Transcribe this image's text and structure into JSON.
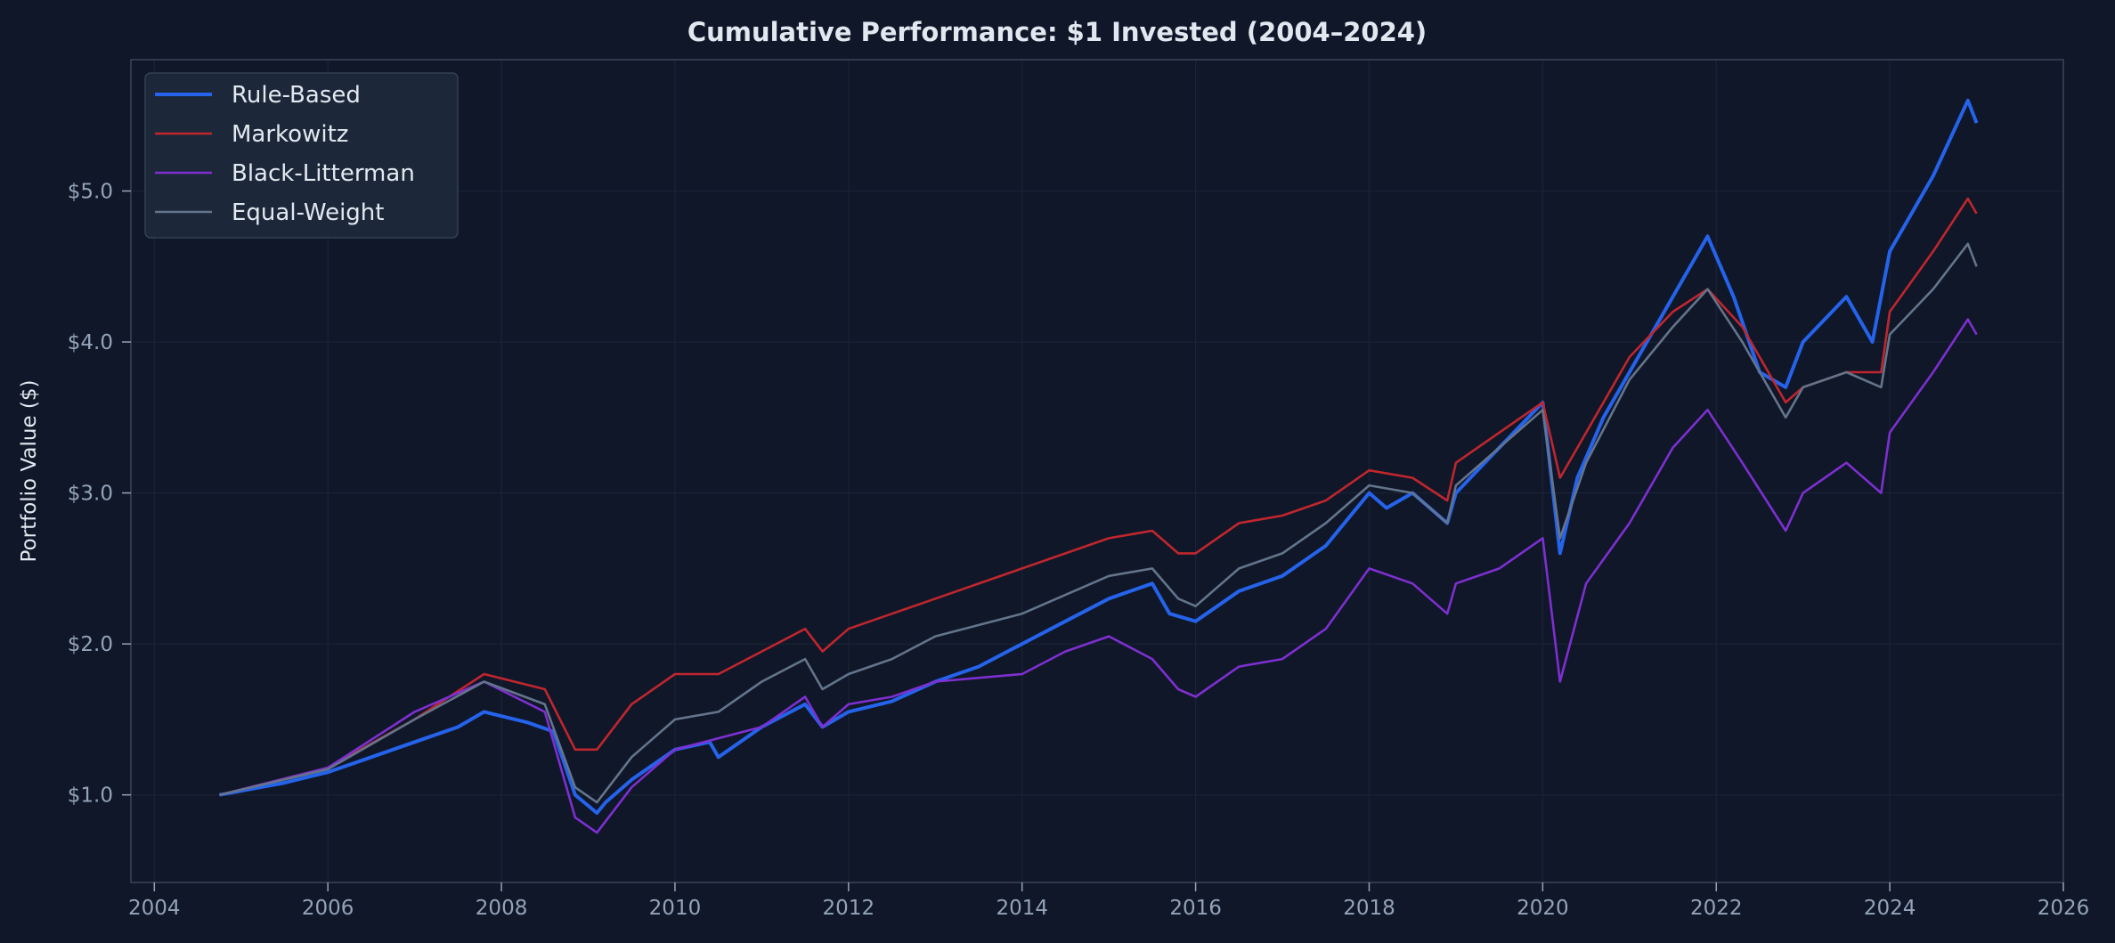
{
  "chart_data": {
    "type": "line",
    "title": "Cumulative Performance: $1 Invested (2004–2024)",
    "xlabel": "",
    "ylabel": "Portfolio Value ($)",
    "xlim": [
      2003.73,
      2026.0
    ],
    "ylim": [
      0.42,
      5.87
    ],
    "xticks": [
      2004,
      2006,
      2008,
      2010,
      2012,
      2014,
      2016,
      2018,
      2020,
      2022,
      2024,
      2026
    ],
    "yticks": [
      1.0,
      2.0,
      3.0,
      4.0,
      5.0
    ],
    "ytick_labels": [
      "$1.0",
      "$2.0",
      "$3.0",
      "$4.0",
      "$5.0"
    ],
    "grid": true,
    "legend_position": "top-left",
    "colors": {
      "background": "#0f1729",
      "grid": "#1a2436",
      "spine": "#3b4759"
    },
    "series": [
      {
        "name": "Rule-Based",
        "color": "#2563eb",
        "points": [
          [
            2004.75,
            1.0
          ],
          [
            2005.5,
            1.08
          ],
          [
            2006.0,
            1.15
          ],
          [
            2006.5,
            1.25
          ],
          [
            2007.0,
            1.35
          ],
          [
            2007.5,
            1.45
          ],
          [
            2007.8,
            1.55
          ],
          [
            2008.3,
            1.48
          ],
          [
            2008.6,
            1.42
          ],
          [
            2008.85,
            1.0
          ],
          [
            2009.1,
            0.88
          ],
          [
            2009.2,
            0.95
          ],
          [
            2009.5,
            1.1
          ],
          [
            2010.0,
            1.3
          ],
          [
            2010.4,
            1.35
          ],
          [
            2010.5,
            1.25
          ],
          [
            2011.0,
            1.45
          ],
          [
            2011.5,
            1.6
          ],
          [
            2011.7,
            1.45
          ],
          [
            2012.0,
            1.55
          ],
          [
            2012.5,
            1.62
          ],
          [
            2013.0,
            1.75
          ],
          [
            2013.5,
            1.85
          ],
          [
            2014.0,
            2.0
          ],
          [
            2014.5,
            2.15
          ],
          [
            2015.0,
            2.3
          ],
          [
            2015.5,
            2.4
          ],
          [
            2015.7,
            2.2
          ],
          [
            2016.0,
            2.15
          ],
          [
            2016.5,
            2.35
          ],
          [
            2017.0,
            2.45
          ],
          [
            2017.5,
            2.65
          ],
          [
            2018.0,
            3.0
          ],
          [
            2018.2,
            2.9
          ],
          [
            2018.5,
            3.0
          ],
          [
            2018.9,
            2.8
          ],
          [
            2019.0,
            3.0
          ],
          [
            2019.5,
            3.3
          ],
          [
            2020.0,
            3.6
          ],
          [
            2020.2,
            2.6
          ],
          [
            2020.4,
            3.1
          ],
          [
            2020.7,
            3.5
          ],
          [
            2021.0,
            3.8
          ],
          [
            2021.5,
            4.3
          ],
          [
            2021.9,
            4.7
          ],
          [
            2022.2,
            4.3
          ],
          [
            2022.5,
            3.8
          ],
          [
            2022.8,
            3.7
          ],
          [
            2023.0,
            4.0
          ],
          [
            2023.5,
            4.3
          ],
          [
            2023.8,
            4.0
          ],
          [
            2024.0,
            4.6
          ],
          [
            2024.5,
            5.1
          ],
          [
            2024.9,
            5.6
          ],
          [
            2025.0,
            5.45
          ]
        ]
      },
      {
        "name": "Markowitz",
        "color": "#c0262d",
        "points": [
          [
            2004.75,
            1.0
          ],
          [
            2006.0,
            1.18
          ],
          [
            2007.0,
            1.5
          ],
          [
            2007.8,
            1.8
          ],
          [
            2008.5,
            1.7
          ],
          [
            2008.85,
            1.3
          ],
          [
            2009.1,
            1.3
          ],
          [
            2009.5,
            1.6
          ],
          [
            2010.0,
            1.8
          ],
          [
            2010.5,
            1.8
          ],
          [
            2011.0,
            1.95
          ],
          [
            2011.5,
            2.1
          ],
          [
            2011.7,
            1.95
          ],
          [
            2012.0,
            2.1
          ],
          [
            2012.5,
            2.2
          ],
          [
            2013.0,
            2.3
          ],
          [
            2014.0,
            2.5
          ],
          [
            2015.0,
            2.7
          ],
          [
            2015.5,
            2.75
          ],
          [
            2015.8,
            2.6
          ],
          [
            2016.0,
            2.6
          ],
          [
            2016.5,
            2.8
          ],
          [
            2017.0,
            2.85
          ],
          [
            2017.5,
            2.95
          ],
          [
            2018.0,
            3.15
          ],
          [
            2018.5,
            3.1
          ],
          [
            2018.9,
            2.95
          ],
          [
            2019.0,
            3.2
          ],
          [
            2019.5,
            3.4
          ],
          [
            2020.0,
            3.6
          ],
          [
            2020.2,
            3.1
          ],
          [
            2020.5,
            3.4
          ],
          [
            2021.0,
            3.9
          ],
          [
            2021.5,
            4.2
          ],
          [
            2021.9,
            4.35
          ],
          [
            2022.3,
            4.1
          ],
          [
            2022.8,
            3.6
          ],
          [
            2023.0,
            3.7
          ],
          [
            2023.5,
            3.8
          ],
          [
            2023.9,
            3.8
          ],
          [
            2024.0,
            4.2
          ],
          [
            2024.5,
            4.6
          ],
          [
            2024.9,
            4.95
          ],
          [
            2025.0,
            4.85
          ]
        ]
      },
      {
        "name": "Black-Litterman",
        "color": "#7e2fd0",
        "points": [
          [
            2004.75,
            1.0
          ],
          [
            2006.0,
            1.18
          ],
          [
            2007.0,
            1.55
          ],
          [
            2007.8,
            1.75
          ],
          [
            2008.5,
            1.55
          ],
          [
            2008.85,
            0.85
          ],
          [
            2009.1,
            0.75
          ],
          [
            2009.5,
            1.05
          ],
          [
            2010.0,
            1.3
          ],
          [
            2011.0,
            1.45
          ],
          [
            2011.5,
            1.65
          ],
          [
            2011.7,
            1.45
          ],
          [
            2012.0,
            1.6
          ],
          [
            2012.5,
            1.65
          ],
          [
            2013.0,
            1.75
          ],
          [
            2014.0,
            1.8
          ],
          [
            2014.5,
            1.95
          ],
          [
            2015.0,
            2.05
          ],
          [
            2015.5,
            1.9
          ],
          [
            2015.8,
            1.7
          ],
          [
            2016.0,
            1.65
          ],
          [
            2016.5,
            1.85
          ],
          [
            2017.0,
            1.9
          ],
          [
            2017.5,
            2.1
          ],
          [
            2018.0,
            2.5
          ],
          [
            2018.5,
            2.4
          ],
          [
            2018.9,
            2.2
          ],
          [
            2019.0,
            2.4
          ],
          [
            2019.5,
            2.5
          ],
          [
            2020.0,
            2.7
          ],
          [
            2020.2,
            1.75
          ],
          [
            2020.5,
            2.4
          ],
          [
            2021.0,
            2.8
          ],
          [
            2021.5,
            3.3
          ],
          [
            2021.9,
            3.55
          ],
          [
            2022.3,
            3.2
          ],
          [
            2022.8,
            2.75
          ],
          [
            2023.0,
            3.0
          ],
          [
            2023.5,
            3.2
          ],
          [
            2023.9,
            3.0
          ],
          [
            2024.0,
            3.4
          ],
          [
            2024.5,
            3.8
          ],
          [
            2024.9,
            4.15
          ],
          [
            2025.0,
            4.05
          ]
        ]
      },
      {
        "name": "Equal-Weight",
        "color": "#64748b",
        "points": [
          [
            2004.75,
            1.0
          ],
          [
            2006.0,
            1.17
          ],
          [
            2007.0,
            1.5
          ],
          [
            2007.8,
            1.75
          ],
          [
            2008.5,
            1.6
          ],
          [
            2008.85,
            1.05
          ],
          [
            2009.1,
            0.95
          ],
          [
            2009.5,
            1.25
          ],
          [
            2010.0,
            1.5
          ],
          [
            2010.5,
            1.55
          ],
          [
            2011.0,
            1.75
          ],
          [
            2011.5,
            1.9
          ],
          [
            2011.7,
            1.7
          ],
          [
            2012.0,
            1.8
          ],
          [
            2012.5,
            1.9
          ],
          [
            2013.0,
            2.05
          ],
          [
            2014.0,
            2.2
          ],
          [
            2015.0,
            2.45
          ],
          [
            2015.5,
            2.5
          ],
          [
            2015.8,
            2.3
          ],
          [
            2016.0,
            2.25
          ],
          [
            2016.5,
            2.5
          ],
          [
            2017.0,
            2.6
          ],
          [
            2017.5,
            2.8
          ],
          [
            2018.0,
            3.05
          ],
          [
            2018.5,
            3.0
          ],
          [
            2018.9,
            2.8
          ],
          [
            2019.0,
            3.05
          ],
          [
            2019.5,
            3.3
          ],
          [
            2020.0,
            3.55
          ],
          [
            2020.2,
            2.7
          ],
          [
            2020.5,
            3.2
          ],
          [
            2021.0,
            3.75
          ],
          [
            2021.5,
            4.1
          ],
          [
            2021.9,
            4.35
          ],
          [
            2022.3,
            4.0
          ],
          [
            2022.8,
            3.5
          ],
          [
            2023.0,
            3.7
          ],
          [
            2023.5,
            3.8
          ],
          [
            2023.9,
            3.7
          ],
          [
            2024.0,
            4.05
          ],
          [
            2024.5,
            4.35
          ],
          [
            2024.9,
            4.65
          ],
          [
            2025.0,
            4.5
          ]
        ]
      }
    ]
  }
}
